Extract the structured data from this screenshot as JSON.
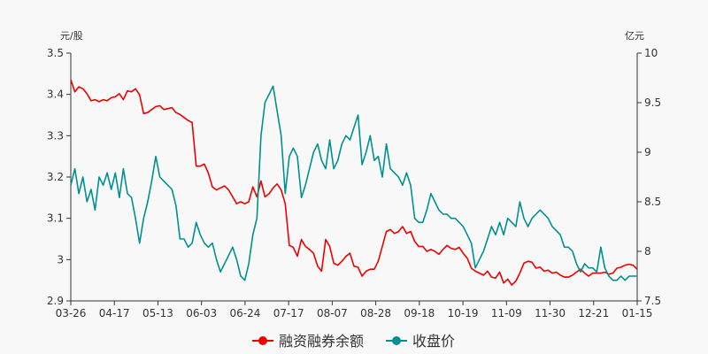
{
  "chart_data": {
    "type": "line",
    "left_unit": "元/股",
    "right_unit": "亿元",
    "x_ticks": [
      "03-26",
      "04-17",
      "05-13",
      "06-03",
      "06-24",
      "07-17",
      "08-07",
      "08-28",
      "09-18",
      "10-19",
      "11-09",
      "11-30",
      "12-21",
      "01-15"
    ],
    "y_left": {
      "ticks": [
        "2.9",
        "3",
        "3.1",
        "3.2",
        "3.3",
        "3.4",
        "3.5"
      ],
      "range": [
        2.9,
        3.5
      ]
    },
    "y_right": {
      "ticks": [
        "7.5",
        "8",
        "8.5",
        "9",
        "9.5",
        "10"
      ],
      "range": [
        7.5,
        10
      ]
    },
    "grid": false,
    "legend_position": "bottom",
    "series": [
      {
        "name": "融资融券余额",
        "axis": "right",
        "color": "#ee0000",
        "values": [
          [
            0,
            9.73
          ],
          [
            3,
            9.61
          ],
          [
            6,
            9.66
          ],
          [
            9,
            9.64
          ],
          [
            12,
            9.59
          ],
          [
            15,
            9.52
          ],
          [
            18,
            9.53
          ],
          [
            21,
            9.51
          ],
          [
            24,
            9.53
          ],
          [
            27,
            9.52
          ],
          [
            30,
            9.55
          ],
          [
            33,
            9.56
          ],
          [
            36,
            9.59
          ],
          [
            39,
            9.53
          ],
          [
            42,
            9.62
          ],
          [
            45,
            9.61
          ],
          [
            48,
            9.64
          ],
          [
            51,
            9.58
          ],
          [
            54,
            9.39
          ],
          [
            57,
            9.4
          ],
          [
            60,
            9.43
          ],
          [
            63,
            9.46
          ],
          [
            66,
            9.47
          ],
          [
            69,
            9.43
          ],
          [
            72,
            9.44
          ],
          [
            75,
            9.45
          ],
          [
            78,
            9.4
          ],
          [
            81,
            9.38
          ],
          [
            84,
            9.35
          ],
          [
            87,
            9.32
          ],
          [
            90,
            9.3
          ],
          [
            93,
            8.86
          ],
          [
            96,
            8.86
          ],
          [
            99,
            8.88
          ],
          [
            102,
            8.79
          ],
          [
            105,
            8.65
          ],
          [
            108,
            8.62
          ],
          [
            111,
            8.64
          ],
          [
            114,
            8.66
          ],
          [
            117,
            8.62
          ],
          [
            120,
            8.55
          ],
          [
            123,
            8.48
          ],
          [
            126,
            8.5
          ],
          [
            129,
            8.48
          ],
          [
            132,
            8.5
          ],
          [
            135,
            8.65
          ],
          [
            138,
            8.55
          ],
          [
            141,
            8.71
          ],
          [
            144,
            8.55
          ],
          [
            147,
            8.58
          ],
          [
            150,
            8.64
          ],
          [
            153,
            8.68
          ],
          [
            156,
            8.62
          ],
          [
            159,
            8.48
          ],
          [
            162,
            8.06
          ],
          [
            165,
            8.04
          ],
          [
            168,
            7.95
          ],
          [
            171,
            8.12
          ],
          [
            174,
            8.05
          ],
          [
            177,
            8.02
          ],
          [
            180,
            7.98
          ],
          [
            183,
            7.85
          ],
          [
            186,
            7.8
          ],
          [
            189,
            8.12
          ],
          [
            192,
            8.05
          ],
          [
            195,
            7.88
          ],
          [
            198,
            7.86
          ],
          [
            201,
            7.9
          ],
          [
            204,
            7.95
          ],
          [
            207,
            7.98
          ],
          [
            210,
            7.85
          ],
          [
            213,
            7.84
          ],
          [
            216,
            7.75
          ],
          [
            219,
            7.8
          ],
          [
            222,
            7.82
          ],
          [
            225,
            7.82
          ],
          [
            228,
            7.9
          ],
          [
            231,
            8.05
          ],
          [
            234,
            8.2
          ],
          [
            237,
            8.22
          ],
          [
            240,
            8.18
          ],
          [
            243,
            8.2
          ],
          [
            246,
            8.25
          ],
          [
            249,
            8.18
          ],
          [
            252,
            8.2
          ],
          [
            255,
            8.1
          ],
          [
            258,
            8.05
          ],
          [
            261,
            8.05
          ],
          [
            264,
            8.0
          ],
          [
            267,
            8.02
          ],
          [
            270,
            8.0
          ],
          [
            273,
            7.97
          ],
          [
            276,
            8.02
          ],
          [
            279,
            8.06
          ],
          [
            282,
            8.03
          ],
          [
            285,
            8.02
          ],
          [
            288,
            8.04
          ],
          [
            291,
            7.98
          ],
          [
            294,
            7.93
          ],
          [
            297,
            7.83
          ],
          [
            300,
            7.8
          ],
          [
            303,
            7.78
          ],
          [
            306,
            7.76
          ],
          [
            309,
            7.8
          ],
          [
            312,
            7.74
          ],
          [
            315,
            7.73
          ],
          [
            318,
            7.79
          ],
          [
            321,
            7.68
          ],
          [
            324,
            7.72
          ],
          [
            327,
            7.66
          ],
          [
            330,
            7.7
          ],
          [
            333,
            7.78
          ],
          [
            336,
            7.88
          ],
          [
            339,
            7.9
          ],
          [
            342,
            7.89
          ],
          [
            345,
            7.83
          ],
          [
            348,
            7.84
          ],
          [
            351,
            7.8
          ],
          [
            354,
            7.81
          ],
          [
            357,
            7.78
          ],
          [
            360,
            7.79
          ],
          [
            363,
            7.76
          ],
          [
            366,
            7.74
          ],
          [
            369,
            7.74
          ],
          [
            372,
            7.76
          ],
          [
            375,
            7.79
          ],
          [
            378,
            7.82
          ],
          [
            381,
            7.78
          ],
          [
            384,
            7.75
          ],
          [
            387,
            7.78
          ],
          [
            390,
            7.78
          ],
          [
            393,
            7.78
          ],
          [
            396,
            7.79
          ],
          [
            399,
            7.77
          ],
          [
            402,
            7.78
          ],
          [
            405,
            7.83
          ],
          [
            408,
            7.84
          ],
          [
            411,
            7.86
          ],
          [
            414,
            7.87
          ],
          [
            417,
            7.86
          ],
          [
            420,
            7.82
          ]
        ]
      },
      {
        "name": "收盘价",
        "axis": "left",
        "color": "#009090",
        "values": [
          [
            0,
            3.18
          ],
          [
            3,
            3.22
          ],
          [
            6,
            3.16
          ],
          [
            9,
            3.2
          ],
          [
            12,
            3.14
          ],
          [
            15,
            3.17
          ],
          [
            18,
            3.12
          ],
          [
            21,
            3.2
          ],
          [
            24,
            3.18
          ],
          [
            27,
            3.21
          ],
          [
            30,
            3.17
          ],
          [
            33,
            3.21
          ],
          [
            36,
            3.15
          ],
          [
            39,
            3.22
          ],
          [
            42,
            3.16
          ],
          [
            45,
            3.15
          ],
          [
            48,
            3.1
          ],
          [
            51,
            3.04
          ],
          [
            54,
            3.1
          ],
          [
            57,
            3.14
          ],
          [
            60,
            3.19
          ],
          [
            63,
            3.25
          ],
          [
            66,
            3.2
          ],
          [
            69,
            3.19
          ],
          [
            72,
            3.18
          ],
          [
            75,
            3.17
          ],
          [
            78,
            3.13
          ],
          [
            81,
            3.05
          ],
          [
            84,
            3.05
          ],
          [
            87,
            3.03
          ],
          [
            90,
            3.04
          ],
          [
            93,
            3.09
          ],
          [
            96,
            3.06
          ],
          [
            99,
            3.04
          ],
          [
            102,
            3.03
          ],
          [
            105,
            3.04
          ],
          [
            108,
            3.0
          ],
          [
            111,
            2.97
          ],
          [
            114,
            2.99
          ],
          [
            117,
            3.01
          ],
          [
            120,
            3.03
          ],
          [
            123,
            3.0
          ],
          [
            126,
            2.96
          ],
          [
            129,
            2.95
          ],
          [
            132,
            2.99
          ],
          [
            135,
            3.06
          ],
          [
            138,
            3.1
          ],
          [
            141,
            3.3
          ],
          [
            144,
            3.38
          ],
          [
            147,
            3.4
          ],
          [
            150,
            3.42
          ],
          [
            153,
            3.36
          ],
          [
            156,
            3.3
          ],
          [
            159,
            3.16
          ],
          [
            162,
            3.25
          ],
          [
            165,
            3.27
          ],
          [
            168,
            3.25
          ],
          [
            171,
            3.15
          ],
          [
            174,
            3.18
          ],
          [
            177,
            3.22
          ],
          [
            180,
            3.26
          ],
          [
            183,
            3.28
          ],
          [
            186,
            3.24
          ],
          [
            189,
            3.22
          ],
          [
            192,
            3.29
          ],
          [
            195,
            3.22
          ],
          [
            198,
            3.24
          ],
          [
            201,
            3.28
          ],
          [
            204,
            3.3
          ],
          [
            207,
            3.29
          ],
          [
            210,
            3.32
          ],
          [
            213,
            3.35
          ],
          [
            216,
            3.23
          ],
          [
            219,
            3.26
          ],
          [
            222,
            3.3
          ],
          [
            225,
            3.24
          ],
          [
            228,
            3.25
          ],
          [
            231,
            3.2
          ],
          [
            234,
            3.28
          ],
          [
            237,
            3.22
          ],
          [
            240,
            3.21
          ],
          [
            243,
            3.2
          ],
          [
            246,
            3.18
          ],
          [
            249,
            3.21
          ],
          [
            252,
            3.18
          ],
          [
            255,
            3.1
          ],
          [
            258,
            3.09
          ],
          [
            261,
            3.09
          ],
          [
            264,
            3.12
          ],
          [
            267,
            3.16
          ],
          [
            270,
            3.14
          ],
          [
            273,
            3.12
          ],
          [
            276,
            3.11
          ],
          [
            279,
            3.11
          ],
          [
            282,
            3.1
          ],
          [
            285,
            3.1
          ],
          [
            288,
            3.09
          ],
          [
            291,
            3.08
          ],
          [
            294,
            3.06
          ],
          [
            297,
            3.04
          ],
          [
            300,
            2.98
          ],
          [
            303,
            3.0
          ],
          [
            306,
            3.02
          ],
          [
            309,
            3.05
          ],
          [
            312,
            3.08
          ],
          [
            315,
            3.06
          ],
          [
            318,
            3.09
          ],
          [
            321,
            3.06
          ],
          [
            324,
            3.1
          ],
          [
            327,
            3.09
          ],
          [
            330,
            3.08
          ],
          [
            333,
            3.14
          ],
          [
            336,
            3.1
          ],
          [
            339,
            3.08
          ],
          [
            342,
            3.1
          ],
          [
            345,
            3.11
          ],
          [
            348,
            3.12
          ],
          [
            351,
            3.11
          ],
          [
            354,
            3.1
          ],
          [
            357,
            3.08
          ],
          [
            360,
            3.07
          ],
          [
            363,
            3.06
          ],
          [
            366,
            3.03
          ],
          [
            369,
            3.03
          ],
          [
            372,
            3.02
          ],
          [
            375,
            2.99
          ],
          [
            378,
            2.97
          ],
          [
            381,
            2.99
          ],
          [
            384,
            2.98
          ],
          [
            387,
            2.98
          ],
          [
            390,
            2.97
          ],
          [
            393,
            3.03
          ],
          [
            396,
            2.98
          ],
          [
            399,
            2.96
          ],
          [
            402,
            2.95
          ],
          [
            405,
            2.95
          ],
          [
            408,
            2.96
          ],
          [
            411,
            2.95
          ],
          [
            414,
            2.96
          ],
          [
            417,
            2.96
          ],
          [
            420,
            2.96
          ]
        ]
      }
    ]
  }
}
